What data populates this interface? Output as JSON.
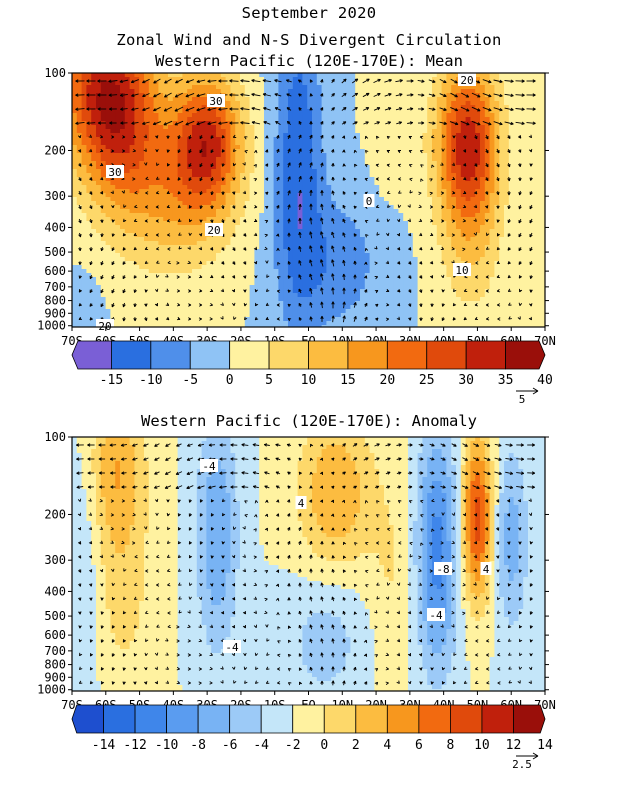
{
  "page": {
    "title": "September 2020",
    "subtitle": "Zonal Wind and N-S Divergent Circulation"
  },
  "chart_data": [
    {
      "type": "heatmap",
      "title": "Western Pacific (120E-170E): Mean",
      "x_ticks": [
        "70S",
        "60S",
        "50S",
        "40S",
        "30S",
        "20S",
        "10S",
        "EQ",
        "10N",
        "20N",
        "30N",
        "40N",
        "50N",
        "60N",
        "70N"
      ],
      "y_ticks": [
        "100",
        "200",
        "300",
        "400",
        "500",
        "600",
        "700",
        "800",
        "900",
        "1000"
      ],
      "y_scale": "log pressure (hPa)",
      "colorbar": {
        "ticks": [
          "-15",
          "-10",
          "-5",
          "0",
          "5",
          "10",
          "15",
          "20",
          "25",
          "30",
          "35",
          "40"
        ],
        "colors": [
          "#7a5fd6",
          "#2a6fe0",
          "#4f8fea",
          "#8fc3f5",
          "#fff2a0",
          "#fdd86a",
          "#fcbc40",
          "#f7971e",
          "#f26a10",
          "#e04a0c",
          "#c0200c",
          "#9a0f0a"
        ]
      },
      "vector_reference": "5",
      "annotations": [
        "20",
        "30",
        "30",
        "20",
        "20",
        "10",
        "0"
      ]
    },
    {
      "type": "heatmap",
      "title": "Western Pacific (120E-170E): Anomaly",
      "x_ticks": [
        "70S",
        "60S",
        "50S",
        "40S",
        "30S",
        "20S",
        "10S",
        "EQ",
        "10N",
        "20N",
        "30N",
        "40N",
        "50N",
        "60N",
        "70N"
      ],
      "y_ticks": [
        "100",
        "200",
        "300",
        "400",
        "500",
        "600",
        "700",
        "800",
        "900",
        "1000"
      ],
      "y_scale": "log pressure (hPa)",
      "colorbar": {
        "ticks": [
          "-14",
          "-12",
          "-10",
          "-8",
          "-6",
          "-4",
          "-2",
          "0",
          "2",
          "4",
          "6",
          "8",
          "10",
          "12",
          "14"
        ],
        "colors": [
          "#1e4fcf",
          "#2a6fe0",
          "#3f86ea",
          "#5a9cf0",
          "#78b3f4",
          "#9ccaf7",
          "#c4e6f9",
          "#fff2a0",
          "#fdd86a",
          "#fcbc40",
          "#f7971e",
          "#f26a10",
          "#e04a0c",
          "#c0200c",
          "#9a0f0a"
        ]
      },
      "vector_reference": "2.5",
      "annotations": [
        "-4",
        "4",
        "-4",
        "-8",
        "4",
        "-4"
      ]
    }
  ]
}
